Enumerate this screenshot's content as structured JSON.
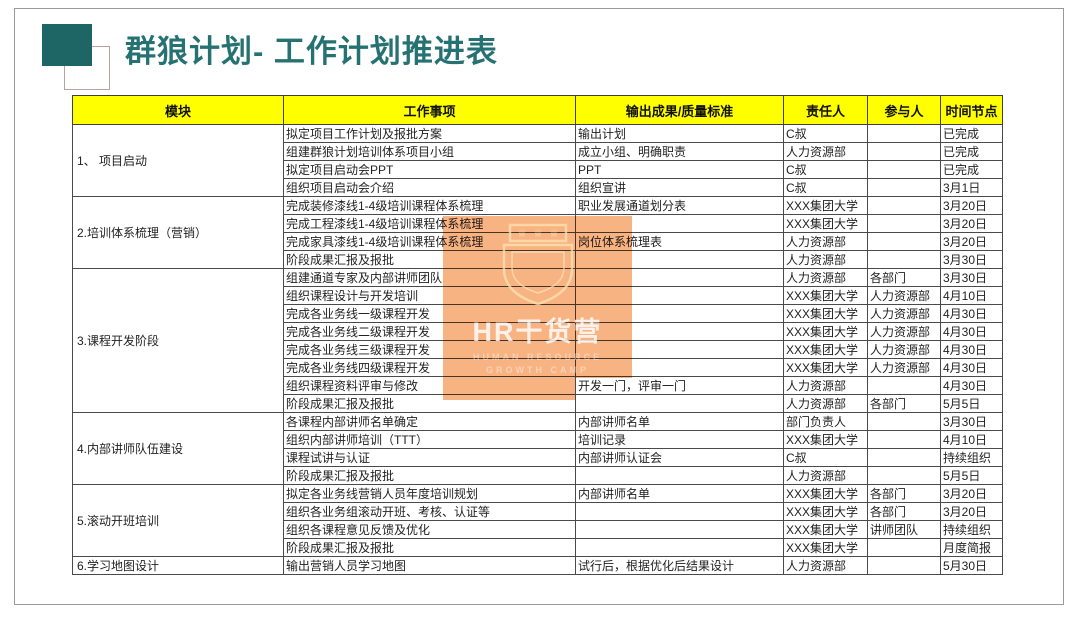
{
  "slide": {
    "title": "群狼计划- 工作计划推进表"
  },
  "colors": {
    "accent_teal": "#267272",
    "logo_teal": "#1e6565",
    "header_yellow": "#ffff00",
    "watermark_orange": "#f6a268"
  },
  "table": {
    "headers": [
      "模块",
      "工作事项",
      "输出成果/质量标准",
      "责任人",
      "参与人",
      "时间节点"
    ],
    "sections": [
      {
        "module": "1、 项目启动",
        "rows": [
          [
            "拟定项目工作计划及报批方案",
            "输出计划",
            "C叔",
            "",
            "已完成"
          ],
          [
            "组建群狼计划培训体系项目小组",
            "成立小组、明确职责",
            "人力资源部",
            "",
            "已完成"
          ],
          [
            "拟定项目启动会PPT",
            "PPT",
            "C叔",
            "",
            "已完成"
          ],
          [
            "组织项目启动会介绍",
            "组织宣讲",
            "C叔",
            "",
            "3月1日"
          ]
        ]
      },
      {
        "module": "2.培训体系梳理（营销）",
        "rows": [
          [
            "完成装修漆线1-4级培训课程体系梳理",
            "职业发展通道划分表",
            "XXX集团大学",
            "",
            "3月20日"
          ],
          [
            "完成工程漆线1-4级培训课程体系梳理",
            "",
            "XXX集团大学",
            "",
            "3月20日"
          ],
          [
            "完成家具漆线1-4级培训课程体系梳理",
            "岗位体系梳理表",
            "人力资源部",
            "",
            "3月20日"
          ],
          [
            "阶段成果汇报及报批",
            "",
            "人力资源部",
            "",
            "3月30日"
          ]
        ]
      },
      {
        "module": "3.课程开发阶段",
        "rows": [
          [
            "组建通道专家及内部讲师团队",
            "",
            "人力资源部",
            "各部门",
            "3月30日"
          ],
          [
            "组织课程设计与开发培训",
            "",
            "XXX集团大学",
            "人力资源部",
            "4月10日"
          ],
          [
            "完成各业务线一级课程开发",
            "",
            "XXX集团大学",
            "人力资源部",
            "4月30日"
          ],
          [
            "完成各业务线二级课程开发",
            "",
            "XXX集团大学",
            "人力资源部",
            "4月30日"
          ],
          [
            "完成各业务线三级课程开发",
            "",
            "XXX集团大学",
            "人力资源部",
            "4月30日"
          ],
          [
            "完成各业务线四级课程开发",
            "",
            "XXX集团大学",
            "人力资源部",
            "4月30日"
          ],
          [
            "组织课程资料评审与修改",
            "开发一门，评审一门",
            "人力资源部",
            "",
            "4月30日"
          ],
          [
            "阶段成果汇报及报批",
            "",
            "人力资源部",
            "各部门",
            "5月5日"
          ]
        ]
      },
      {
        "module": "4.内部讲师队伍建设",
        "rows": [
          [
            "各课程内部讲师名单确定",
            "内部讲师名单",
            "部门负责人",
            "",
            "3月30日"
          ],
          [
            "组织内部讲师培训（TTT）",
            "培训记录",
            "XXX集团大学",
            "",
            "4月10日"
          ],
          [
            "课程试讲与认证",
            "内部讲师认证会",
            "C叔",
            "",
            "持续组织"
          ],
          [
            "阶段成果汇报及报批",
            "",
            "人力资源部",
            "",
            "5月5日"
          ]
        ]
      },
      {
        "module": "5.滚动开班培训",
        "rows": [
          [
            "拟定各业务线营销人员年度培训规划",
            "内部讲师名单",
            "XXX集团大学",
            "各部门",
            "3月20日"
          ],
          [
            "组织各业务组滚动开班、考核、认证等",
            "",
            "XXX集团大学",
            "各部门",
            "3月20日"
          ],
          [
            "组织各课程意见反馈及优化",
            "",
            "XXX集团大学",
            "讲师团队",
            "持续组织"
          ],
          [
            "阶段成果汇报及报批",
            "",
            "XXX集团大学",
            "",
            "月度简报"
          ]
        ]
      },
      {
        "module": "6.学习地图设计",
        "rows": [
          [
            "输出营销人员学习地图",
            "试行后，根据优化后结果设计",
            "人力资源部",
            "",
            "5月30日"
          ]
        ]
      }
    ]
  },
  "watermark": {
    "brand": "HR干货营",
    "subtitle1": "HUMAN RESOURCE",
    "subtitle2": "GROWTH CAMP"
  }
}
